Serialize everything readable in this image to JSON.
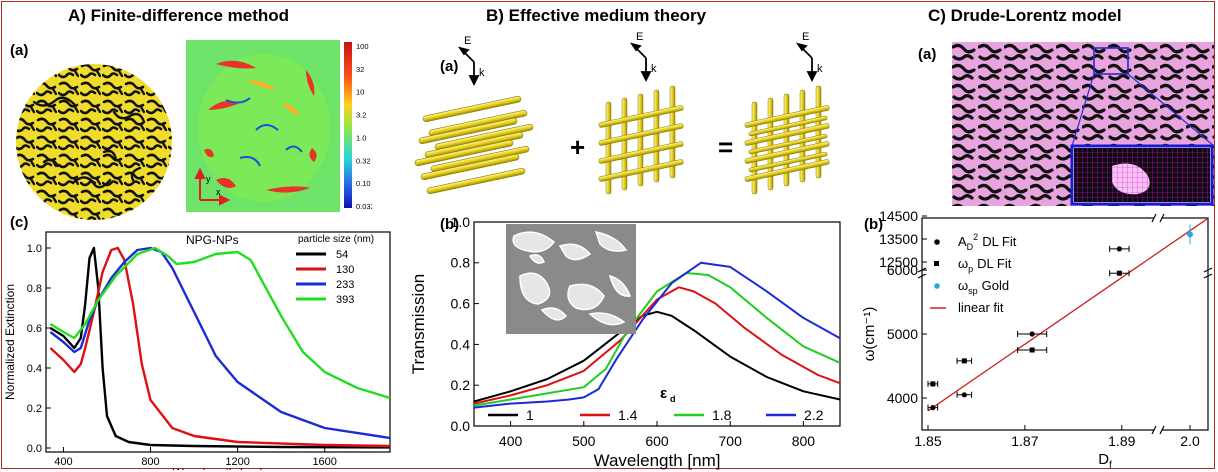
{
  "sections": {
    "A": "A) Finite-difference method",
    "B": "B) Effective medium theory",
    "C": "C) Drude-Lorentz model"
  },
  "panel_labels": {
    "a": "(a)",
    "b": "(b)",
    "c": "(c)"
  },
  "colors": {
    "frame": "#b22a2a",
    "gold": "#f0dc2a",
    "pink": "#e7a4df",
    "grid": "#ff00ff",
    "fit": "#cc2222"
  },
  "A_b": {
    "colorbar_ticks": [
      "100",
      "32",
      "10",
      "3.2",
      "1.0",
      "0.32",
      "0.10",
      "0.032"
    ],
    "axis_y": "y",
    "axis_x": "x"
  },
  "B_a": {
    "field": "E",
    "wavevector": "k",
    "plus": "+",
    "equals": "="
  },
  "chart_data": [
    {
      "id": "A_c",
      "type": "line",
      "title": "NPG-NPs",
      "legend_title": "particle size (nm)",
      "xlabel": "Wavelength (nm)",
      "ylabel": "Normalized Extinction",
      "xlim": [
        320,
        1900
      ],
      "ylim": [
        -0.02,
        1.08
      ],
      "xticks": [
        "400",
        "800",
        "1200",
        "1600"
      ],
      "yticks": [
        "0.0",
        "0.2",
        "0.4",
        "0.6",
        "0.8",
        "1.0"
      ],
      "series": [
        {
          "name": "54",
          "color": "#000000",
          "x": [
            340,
            400,
            450,
            480,
            500,
            520,
            540,
            560,
            580,
            600,
            640,
            700,
            800,
            1000,
            1400,
            1900
          ],
          "y": [
            0.6,
            0.56,
            0.5,
            0.55,
            0.72,
            0.95,
            1.0,
            0.8,
            0.4,
            0.16,
            0.06,
            0.03,
            0.015,
            0.01,
            0.005,
            0.003
          ]
        },
        {
          "name": "130",
          "color": "#dd1111",
          "x": [
            340,
            400,
            450,
            480,
            500,
            540,
            580,
            620,
            650,
            680,
            720,
            760,
            800,
            900,
            1000,
            1200,
            1600,
            1900
          ],
          "y": [
            0.5,
            0.44,
            0.38,
            0.42,
            0.5,
            0.68,
            0.88,
            0.99,
            1.0,
            0.94,
            0.72,
            0.42,
            0.24,
            0.1,
            0.06,
            0.03,
            0.015,
            0.01
          ]
        },
        {
          "name": "233",
          "color": "#1a2bd6",
          "x": [
            340,
            400,
            450,
            480,
            520,
            560,
            620,
            680,
            740,
            800,
            850,
            900,
            1000,
            1100,
            1200,
            1400,
            1600,
            1900
          ],
          "y": [
            0.58,
            0.53,
            0.48,
            0.5,
            0.64,
            0.74,
            0.85,
            0.93,
            0.99,
            1.0,
            0.98,
            0.9,
            0.68,
            0.46,
            0.33,
            0.18,
            0.1,
            0.05
          ]
        },
        {
          "name": "393",
          "color": "#22dd22",
          "x": [
            340,
            400,
            450,
            500,
            560,
            640,
            740,
            820,
            880,
            920,
            1000,
            1100,
            1200,
            1260,
            1300,
            1400,
            1500,
            1600,
            1750,
            1900
          ],
          "y": [
            0.62,
            0.58,
            0.55,
            0.62,
            0.74,
            0.86,
            0.97,
            1.0,
            0.96,
            0.92,
            0.93,
            0.97,
            0.98,
            0.94,
            0.86,
            0.66,
            0.48,
            0.38,
            0.3,
            0.25
          ]
        }
      ]
    },
    {
      "id": "B_b",
      "type": "line",
      "xlabel": "Wavelength [nm]",
      "ylabel": "Transmission",
      "legend_title": "ε",
      "legend_title_sub": "d",
      "xlim": [
        350,
        850
      ],
      "ylim": [
        0.0,
        1.0
      ],
      "xticks": [
        "400",
        "500",
        "600",
        "700",
        "800"
      ],
      "yticks": [
        "0.0",
        "0.2",
        "0.4",
        "0.6",
        "0.8",
        "1.0"
      ],
      "series": [
        {
          "name": "1",
          "color": "#000000",
          "x": [
            350,
            400,
            450,
            500,
            550,
            580,
            600,
            620,
            650,
            700,
            750,
            800,
            850
          ],
          "y": [
            0.12,
            0.17,
            0.23,
            0.32,
            0.46,
            0.54,
            0.56,
            0.54,
            0.47,
            0.34,
            0.24,
            0.17,
            0.13
          ]
        },
        {
          "name": "1.4",
          "color": "#dd1111",
          "x": [
            350,
            400,
            450,
            500,
            550,
            600,
            630,
            650,
            680,
            720,
            770,
            820,
            850
          ],
          "y": [
            0.11,
            0.15,
            0.2,
            0.27,
            0.42,
            0.62,
            0.68,
            0.66,
            0.6,
            0.48,
            0.35,
            0.25,
            0.21
          ]
        },
        {
          "name": "1.8",
          "color": "#22cc22",
          "x": [
            350,
            400,
            450,
            500,
            530,
            560,
            600,
            640,
            670,
            700,
            750,
            800,
            850
          ],
          "y": [
            0.1,
            0.13,
            0.16,
            0.19,
            0.28,
            0.47,
            0.66,
            0.75,
            0.74,
            0.68,
            0.53,
            0.39,
            0.31
          ]
        },
        {
          "name": "2.2",
          "color": "#1a2bd6",
          "x": [
            350,
            400,
            450,
            480,
            500,
            520,
            545,
            580,
            620,
            660,
            700,
            750,
            800,
            850
          ],
          "y": [
            0.09,
            0.11,
            0.12,
            0.13,
            0.14,
            0.18,
            0.33,
            0.52,
            0.7,
            0.8,
            0.78,
            0.66,
            0.53,
            0.43
          ]
        }
      ]
    },
    {
      "id": "C_b",
      "type": "scatter",
      "xlabel": "D",
      "xlabel_sub": "f",
      "ylabel": "ω(cm⁻¹)",
      "xticks": [
        "1.85",
        "1.87",
        "1.89",
        "2.0"
      ],
      "yticks": [
        "4000",
        "5000",
        "6000",
        "12500",
        "13500",
        "14500"
      ],
      "legend": [
        {
          "label": "A",
          "sub": "D",
          "sup": "2",
          "tail": "DL Fit",
          "marker": "circle",
          "color": "#000000"
        },
        {
          "label": "ω",
          "sub": "p",
          "sup": "",
          "tail": "DL Fit",
          "marker": "square",
          "color": "#000000"
        },
        {
          "label": "ω",
          "sub": "sp",
          "sup": "",
          "tail": "Gold",
          "marker": "circle",
          "color": "#29a8e0"
        },
        {
          "label": "linear fit",
          "sub": "",
          "sup": "",
          "tail": "",
          "marker": "line",
          "color": "#cc2222"
        }
      ],
      "points": [
        {
          "x": 1.851,
          "y": 3850,
          "marker": "circle",
          "xerr": 0.001
        },
        {
          "x": 1.851,
          "y": 4220,
          "marker": "square",
          "xerr": 0.001
        },
        {
          "x": 1.8575,
          "y": 4050,
          "marker": "circle",
          "xerr": 0.0015
        },
        {
          "x": 1.8575,
          "y": 4580,
          "marker": "square",
          "xerr": 0.0015
        },
        {
          "x": 1.8715,
          "y": 5000,
          "marker": "circle",
          "xerr": 0.003
        },
        {
          "x": 1.8715,
          "y": 4750,
          "marker": "square",
          "xerr": 0.003
        },
        {
          "x": 1.8895,
          "y": 6330,
          "marker": "circle",
          "xerr": 0.002
        },
        {
          "x": 1.8895,
          "y": 5950,
          "marker": "square",
          "xerr": 0.002
        },
        {
          "x": 2.0,
          "y": 13700,
          "marker": "circle_blue",
          "xerr": 0
        }
      ],
      "fit": {
        "x": [
          1.85,
          2.0
        ],
        "y": [
          3800,
          14400
        ]
      }
    }
  ]
}
